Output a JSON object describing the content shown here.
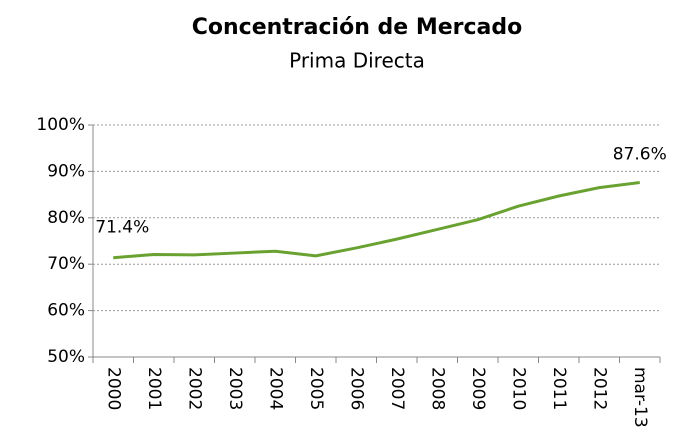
{
  "chart_data": {
    "type": "line",
    "title": "Concentración de Mercado",
    "subtitle": "Prima Directa",
    "categories": [
      "2000",
      "2001",
      "2002",
      "2003",
      "2004",
      "2005",
      "2006",
      "2007",
      "2008",
      "2009",
      "2010",
      "2011",
      "2012",
      "mar-13"
    ],
    "series": [
      {
        "name": "Concentración",
        "color": "#6aa232",
        "values": [
          71.4,
          72.1,
          72.0,
          72.4,
          72.8,
          71.8,
          73.5,
          75.4,
          77.5,
          79.6,
          82.5,
          84.7,
          86.5,
          87.6
        ],
        "value_labels": [
          "71.4%",
          null,
          null,
          null,
          null,
          null,
          null,
          null,
          null,
          null,
          null,
          null,
          null,
          "87.6%"
        ]
      }
    ],
    "ylim": [
      50,
      100
    ],
    "yticks": [
      {
        "value": 50,
        "label": "50%"
      },
      {
        "value": 60,
        "label": "60%"
      },
      {
        "value": 70,
        "label": "70%"
      },
      {
        "value": 80,
        "label": "80%"
      },
      {
        "value": 90,
        "label": "90%"
      },
      {
        "value": 100,
        "label": "100%"
      }
    ],
    "grid": true
  }
}
